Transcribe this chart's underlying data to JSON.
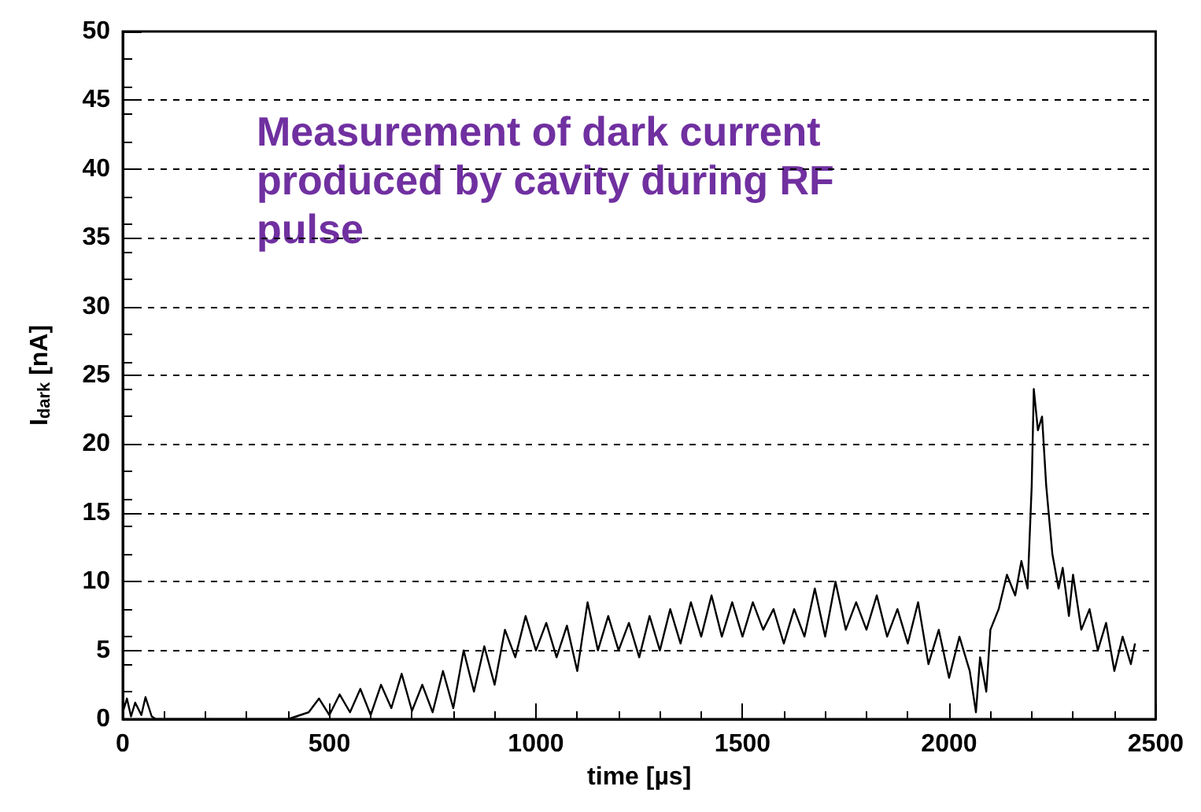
{
  "chart_data": {
    "type": "line",
    "xlabel": "time [µs]",
    "ylabel": "I$_{dark}$ [nA]",
    "annotations": [
      "Measurement of dark current produced by cavity during RF pulse"
    ],
    "xlim": [
      0,
      2500
    ],
    "xticks": [
      0,
      500,
      1000,
      1500,
      2000,
      2500
    ],
    "ylim": [
      0,
      50
    ],
    "yticks": [
      0,
      5,
      10,
      15,
      20,
      25,
      30,
      35,
      40,
      45,
      50
    ],
    "grid": "y",
    "marker": "none",
    "line_style": "solid",
    "series": [
      {
        "color": "#000000",
        "x": [
          0,
          10,
          20,
          30,
          45,
          55,
          70,
          80,
          400,
          450,
          475,
          500,
          525,
          550,
          575,
          600,
          625,
          650,
          675,
          700,
          725,
          750,
          775,
          800,
          825,
          850,
          875,
          900,
          925,
          950,
          975,
          1000,
          1025,
          1050,
          1075,
          1100,
          1125,
          1150,
          1175,
          1200,
          1225,
          1250,
          1275,
          1300,
          1325,
          1350,
          1375,
          1400,
          1425,
          1450,
          1475,
          1500,
          1525,
          1550,
          1575,
          1600,
          1625,
          1650,
          1675,
          1700,
          1725,
          1750,
          1775,
          1800,
          1825,
          1850,
          1875,
          1900,
          1925,
          1950,
          1975,
          2000,
          2025,
          2050,
          2065,
          2075,
          2090,
          2100,
          2120,
          2140,
          2160,
          2175,
          2190,
          2200,
          2205,
          2215,
          2225,
          2235,
          2250,
          2265,
          2275,
          2290,
          2300,
          2320,
          2340,
          2360,
          2380,
          2400,
          2420,
          2440,
          2450
        ],
        "values": [
          0.5,
          1.5,
          0.2,
          1.2,
          0.3,
          1.6,
          0.2,
          0,
          0,
          0.5,
          1.5,
          0.3,
          1.8,
          0.5,
          2.2,
          0.3,
          2.5,
          0.8,
          3.3,
          0.6,
          2.5,
          0.5,
          3.5,
          0.8,
          5.0,
          2.0,
          5.3,
          2.5,
          6.5,
          4.5,
          7.5,
          5.0,
          7.0,
          4.5,
          6.8,
          3.5,
          8.5,
          5.0,
          7.5,
          5.0,
          7.0,
          4.5,
          7.5,
          5.0,
          8.0,
          5.5,
          8.5,
          6.0,
          9.0,
          6.0,
          8.5,
          6.0,
          8.5,
          6.5,
          8.0,
          5.5,
          8.0,
          6.0,
          9.5,
          6.0,
          10.0,
          6.5,
          8.5,
          6.5,
          9.0,
          6.0,
          8.0,
          5.5,
          8.5,
          4.0,
          6.5,
          3.0,
          6.0,
          3.5,
          0.5,
          4.5,
          2.0,
          6.5,
          8.0,
          10.5,
          9.0,
          11.5,
          9.5,
          17,
          24,
          21,
          22,
          17,
          12,
          9.5,
          11,
          7.5,
          10.5,
          6.5,
          8.0,
          5.0,
          7.0,
          3.5,
          6.0,
          4.0,
          5.5
        ]
      }
    ]
  }
}
